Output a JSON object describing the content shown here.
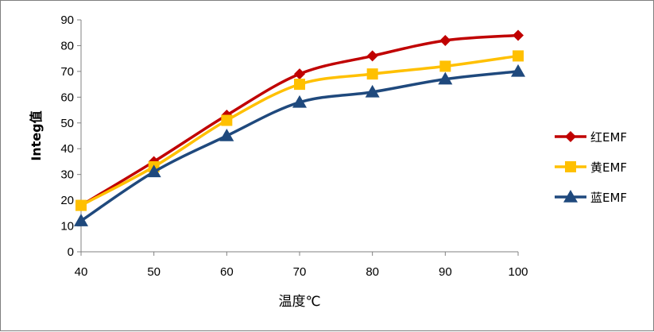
{
  "chart_data": {
    "type": "line",
    "title": "",
    "xlabel": "温度℃",
    "ylabel": "Integ值",
    "x": [
      40,
      50,
      60,
      70,
      80,
      90,
      100
    ],
    "xlim": [
      40,
      100
    ],
    "ylim": [
      0,
      90
    ],
    "yticks": [
      0,
      10,
      20,
      30,
      40,
      50,
      60,
      70,
      80,
      90
    ],
    "grid": false,
    "smooth": true,
    "legend_position": "right",
    "series": [
      {
        "name": "红EMF",
        "values": [
          18,
          35,
          53,
          69,
          76,
          82,
          84
        ],
        "color": "#c00000",
        "marker": "diamond"
      },
      {
        "name": "黄EMF",
        "values": [
          18,
          33,
          51,
          65,
          69,
          72,
          76
        ],
        "color": "#ffc000",
        "marker": "square"
      },
      {
        "name": "蓝EMF",
        "values": [
          12,
          31,
          45,
          58,
          62,
          67,
          70
        ],
        "color": "#1f497d",
        "marker": "triangle"
      }
    ]
  }
}
